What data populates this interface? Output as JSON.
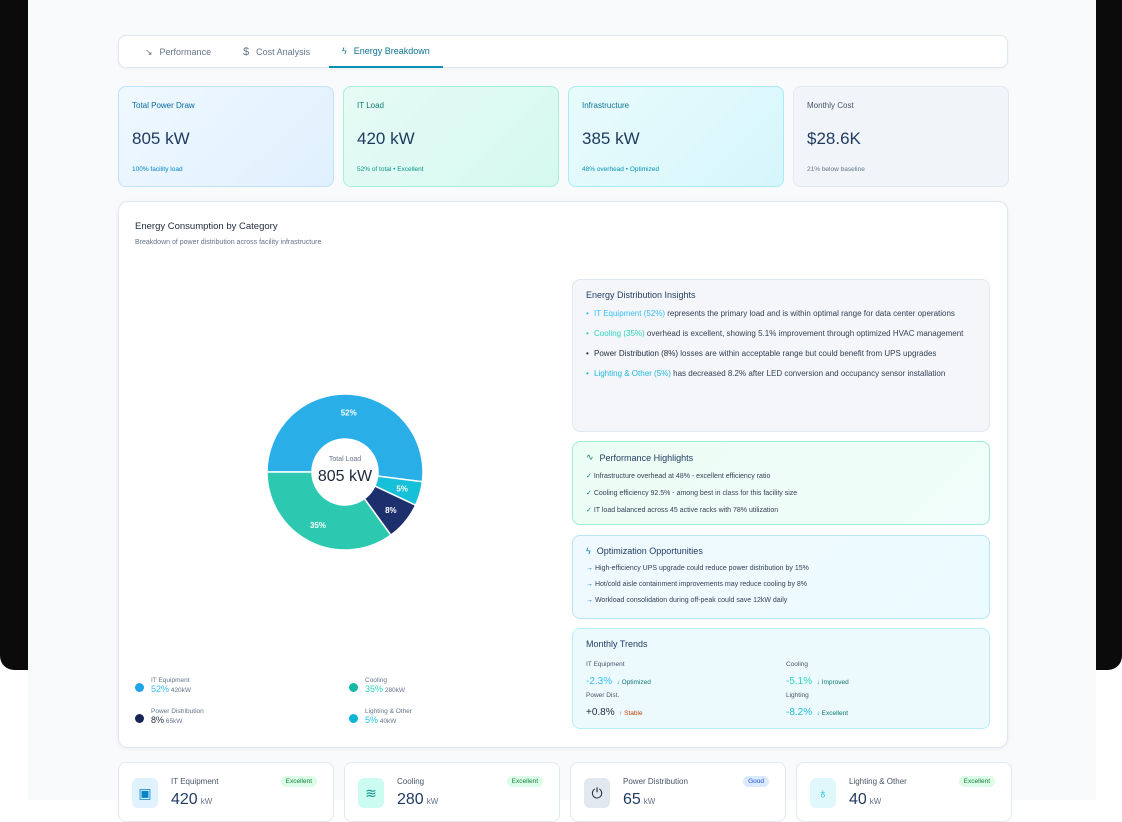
{
  "tabs": [
    {
      "label": "Performance",
      "icon": "trending-down-icon"
    },
    {
      "label": "Cost Analysis",
      "icon": "dollar-icon"
    },
    {
      "label": "Energy Breakdown",
      "icon": "zap-icon",
      "active": true
    }
  ],
  "kpis": [
    {
      "label": "Total Power Draw",
      "value": "805 kW",
      "sub": "100% facility load"
    },
    {
      "label": "IT Load",
      "value": "420 kW",
      "sub": "52% of total • Excellent"
    },
    {
      "label": "Infrastructure",
      "value": "385 kW",
      "sub": "48% overhead • Optimized"
    },
    {
      "label": "Monthly Cost",
      "value": "$28.6K",
      "sub": "21% below baseline"
    }
  ],
  "chart_section": {
    "title": "Energy Consumption by Category",
    "subtitle": "Breakdown of power distribution across facility infrastructure",
    "center_label": "Total Load",
    "center_value": "805 kW"
  },
  "chart_data": {
    "type": "pie",
    "donut": true,
    "categories": [
      "IT Equipment",
      "Lighting & Other",
      "Power Distribution",
      "Cooling"
    ],
    "values": [
      52,
      5,
      8,
      35
    ],
    "labels": [
      "52%",
      "5%",
      "8%",
      "35%"
    ],
    "colors": [
      "#2aaee8",
      "#16c0d8",
      "#1e2f6e",
      "#2cc9b0"
    ]
  },
  "legend": [
    {
      "name": "IT Equipment",
      "pct": "52%",
      "kw": "420kW",
      "color": "#1ea5e9"
    },
    {
      "name": "Cooling",
      "pct": "35%",
      "kw": "280kW",
      "color": "#14b8a6"
    },
    {
      "name": "Power Distribution",
      "pct": "8%",
      "kw": "65kW",
      "color": "#172554"
    },
    {
      "name": "Lighting & Other",
      "pct": "5%",
      "kw": "40kW",
      "color": "#06b6d4"
    }
  ],
  "insights": {
    "title": "Energy Distribution Insights",
    "items": [
      {
        "hl": "IT Equipment (52%)",
        "text": " represents the primary load and is within optimal range for data center operations",
        "color": "#38bdf8"
      },
      {
        "hl": "Cooling (35%)",
        "text": " overhead is excellent, showing 5.1% improvement through optimized HVAC management",
        "color": "#2dd4bf"
      },
      {
        "hl": "Power Distribution (8%)",
        "text": " losses are within acceptable range but could benefit from UPS upgrades",
        "color": "#1e293b"
      },
      {
        "hl": "Lighting & Other (5%)",
        "text": " has decreased 8.2% after LED conversion and occupancy sensor installation",
        "color": "#22b8dc"
      }
    ]
  },
  "highlights": {
    "title": "Performance Highlights",
    "items": [
      "Infrastructure overhead at 48% - excellent efficiency ratio",
      "Cooling efficiency 92.5% - among best in class for this facility size",
      "IT load balanced across 45 active racks with 78% utilization"
    ]
  },
  "opportunities": {
    "title": "Optimization Opportunities",
    "items": [
      "High-efficiency UPS upgrade could reduce power distribution by 15%",
      "Hot/cold aisle containment improvements may reduce cooling by 8%",
      "Workload consolidation during off-peak could save 12kW daily"
    ]
  },
  "trends": {
    "title": "Monthly Trends",
    "items": [
      {
        "label": "IT Equipment",
        "value": "-2.3%",
        "note": "↓ Optimized"
      },
      {
        "label": "Cooling",
        "value": "-5.1%",
        "note": "↓ Improved"
      },
      {
        "label": "Power Dist.",
        "value": "+0.8%",
        "note": "↑ Stable"
      },
      {
        "label": "Lighting",
        "value": "-8.2%",
        "note": "↓ Excellent"
      }
    ]
  },
  "bottom_cards": [
    {
      "title": "IT Equipment",
      "badge": "Excellent",
      "value": "420",
      "unit": "kW",
      "icon": "cpu-icon"
    },
    {
      "title": "Cooling",
      "badge": "Excellent",
      "value": "280",
      "unit": "kW",
      "icon": "wind-icon"
    },
    {
      "title": "Power Distribution",
      "badge": "Good",
      "value": "65",
      "unit": "kW",
      "icon": "power-icon"
    },
    {
      "title": "Lighting & Other",
      "badge": "Excellent",
      "value": "40",
      "unit": "kW",
      "icon": "lightbulb-icon"
    }
  ]
}
